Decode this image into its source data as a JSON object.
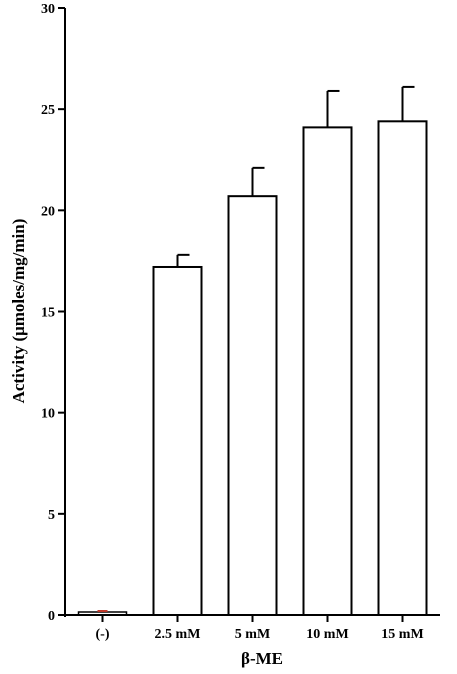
{
  "chart_data": {
    "type": "bar",
    "title": "",
    "xlabel": "β-ME",
    "ylabel": "Activity (μmoles/mg/min)",
    "categories": [
      "(-)",
      "2.5 mM",
      "5 mM",
      "10 mM",
      "15 mM"
    ],
    "values": [
      0.1,
      17.2,
      20.7,
      24.1,
      24.4
    ],
    "errors": [
      0.05,
      0.6,
      1.4,
      1.8,
      1.7
    ],
    "ylim": [
      0,
      30
    ],
    "yticks": [
      0,
      5,
      10,
      15,
      20,
      25,
      30
    ],
    "grid": false,
    "legend": "none",
    "colors": {
      "bar_fill": "#ffffff",
      "bar_stroke": "#000000",
      "control_mark": "#c0392b"
    }
  }
}
